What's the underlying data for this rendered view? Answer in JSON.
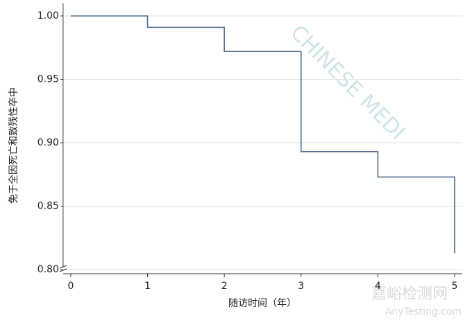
{
  "chart_data": {
    "type": "step",
    "y_label": "免于全因死亡和致残性卒中",
    "x_label": "随访时间（年）",
    "x": [
      0,
      1,
      2,
      3,
      4,
      5
    ],
    "series": [
      {
        "color": "#4f6f8f",
        "values": [
          1.0,
          0.991,
          0.972,
          0.893,
          0.873,
          0.813
        ]
      }
    ],
    "xlim": [
      -0.1,
      5.1
    ],
    "xticks": [
      0,
      1,
      2,
      3,
      4,
      5
    ],
    "ylim": [
      0.8,
      1.01
    ],
    "yticks": [
      {
        "value": 0.8,
        "label": "0.80"
      },
      0.85,
      {
        "value": 0.9,
        "label": "0.90"
      },
      0.95,
      {
        "value": 1.0,
        "label": "1.00"
      }
    ],
    "grid": true,
    "watermarks": [
      "CHINESE MEDI",
      "嘉峪检测网",
      "AnyTesting.com"
    ]
  }
}
